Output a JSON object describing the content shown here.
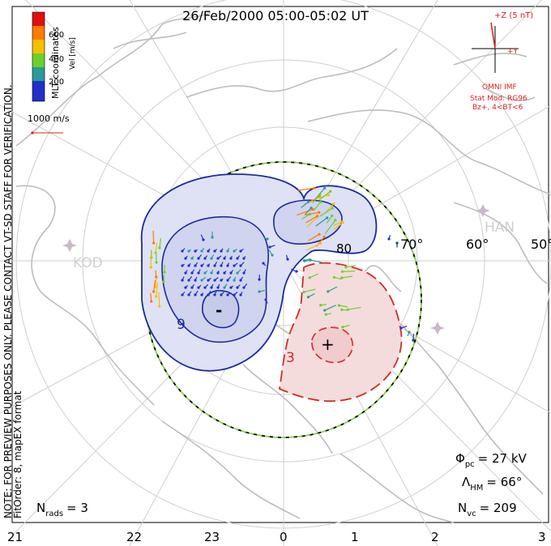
{
  "title": "26/Feb/2000 05:00-05:02 UT",
  "vertical_note": "NOTE: FOR PREVIEW PURPOSES ONLY. PLEASE CONTACT VT-SD STAFF FOR VERIFICATION.",
  "fit_order": "FitOrder: 8, mapEX format",
  "mlt_label": "MLT coordinates",
  "colorbar": {
    "label": "Vel [m/s]",
    "ticks": [
      "600",
      "400",
      "200"
    ],
    "colors": [
      "#e01010",
      "#ff7a00",
      "#f5c000",
      "#6cd02a",
      "#2a9a9a",
      "#2030c8"
    ]
  },
  "velocity_scale": "1000 m/s",
  "imf": {
    "z_label": "+Z (5 nT)",
    "y_label": "+Y",
    "source": "OMNI IMF",
    "model": "Stat Mod: RG96",
    "condition": "Bz+, 4<BT<6",
    "color": "#e02020"
  },
  "latitude_labels": [
    "70°",
    "60°",
    "50°",
    "80"
  ],
  "station_labels": [
    "KOD",
    "HAN"
  ],
  "contour_labels": [
    "9",
    "3",
    "-",
    "+"
  ],
  "stats": {
    "phi_label": "Φ",
    "phi_sub": "pc",
    "phi_value": "= 27 kV",
    "lambda_label": "Λ",
    "lambda_sub": "HM",
    "lambda_value": "= 66°",
    "nvc_label": "N",
    "nvc_sub": "vc",
    "nvc_value": "= 209",
    "nrads_label": "N",
    "nrads_sub": "rads",
    "nrads_value": "= 3"
  },
  "mlt_axis": [
    "21",
    "22",
    "23",
    "0",
    "1",
    "2",
    "3"
  ],
  "colors": {
    "negative_cell": "#1a2aa0",
    "negative_fill": "#dfe2f4",
    "positive_cell": "#d42a2a",
    "positive_fill": "#f5dcdc",
    "coastline": "#c0c0c0"
  }
}
